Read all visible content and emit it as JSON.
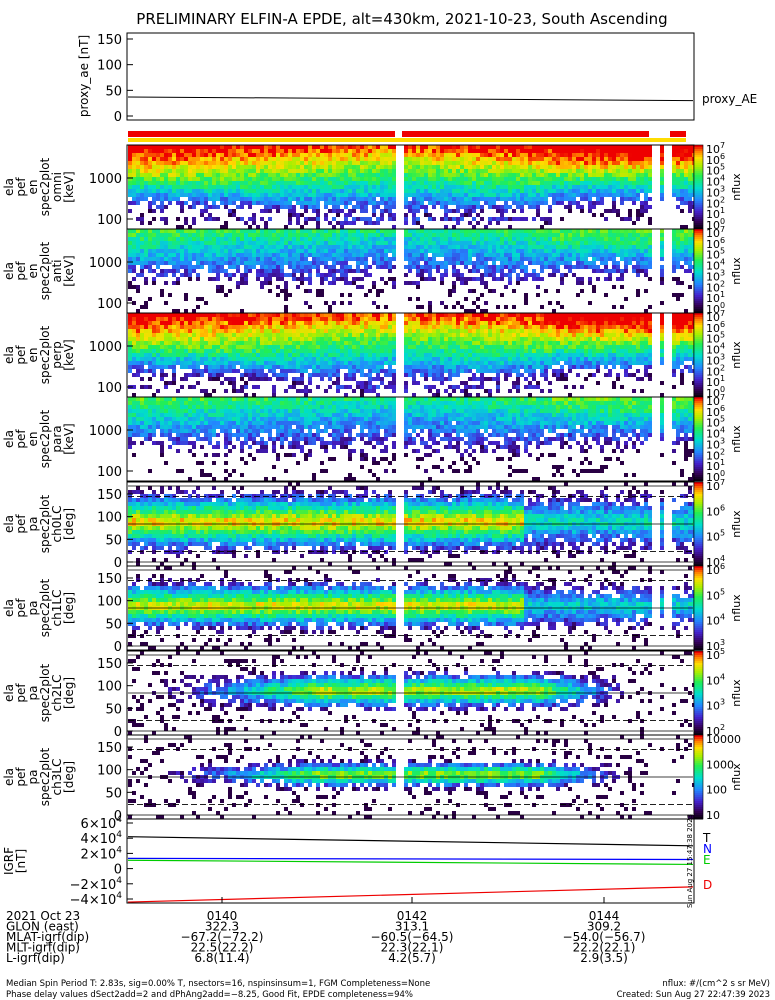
{
  "title": "PRELIMINARY ELFIN-A EPDE, alt=430km, 2021-10-23, South Ascending",
  "colors": {
    "bar_red": "#ee0000",
    "bar_yellow": "#ffdd00",
    "trace_T": "#000000",
    "trace_N": "#0000ff",
    "trace_E": "#00cc00",
    "trace_D": "#ee0000"
  },
  "chart_data": [
    {
      "type": "line",
      "panel": "proxy_ae",
      "ylabel": "proxy_ae [nT]",
      "yticks": [
        "150",
        "100",
        "50",
        "0"
      ],
      "ylim": [
        0,
        150
      ],
      "series": [
        {
          "name": "proxy_AE",
          "x": [
            0,
            1
          ],
          "values": [
            37,
            30
          ]
        }
      ]
    },
    {
      "type": "heatmap",
      "panel": "ela_pef_en_spec2plot_omni",
      "ylabel": "ela pef en spec2plot omni [keV]",
      "yticks": [
        "1000",
        "100"
      ],
      "colorbar_label": "nflux",
      "colorbar_ticks": [
        "10",
        "10",
        "10",
        "10",
        "10",
        "10",
        "10",
        "10"
      ],
      "colorbar_exponents": [
        "7",
        "6",
        "5",
        "4",
        "3",
        "2",
        "1",
        "0"
      ]
    },
    {
      "type": "heatmap",
      "panel": "ela_pef_en_spec2plot_anti",
      "ylabel": "ela pef en spec2plot anti [keV]",
      "yticks": [
        "1000",
        "100"
      ],
      "colorbar_label": "nflux",
      "colorbar_ticks": [
        "10",
        "10",
        "10",
        "10",
        "10",
        "10",
        "10",
        "10"
      ],
      "colorbar_exponents": [
        "7",
        "6",
        "5",
        "4",
        "3",
        "2",
        "1",
        "0"
      ]
    },
    {
      "type": "heatmap",
      "panel": "ela_pef_en_spec2plot_perp",
      "ylabel": "ela pef en spec2plot perp [keV]",
      "yticks": [
        "1000",
        "100"
      ],
      "colorbar_label": "nflux",
      "colorbar_ticks": [
        "10",
        "10",
        "10",
        "10",
        "10",
        "10",
        "10",
        "10"
      ],
      "colorbar_exponents": [
        "7",
        "6",
        "5",
        "4",
        "3",
        "2",
        "1",
        "0"
      ]
    },
    {
      "type": "heatmap",
      "panel": "ela_pef_en_spec2plot_para",
      "ylabel": "ela pef en spec2plot para [keV]",
      "yticks": [
        "1000",
        "100"
      ],
      "colorbar_label": "nflux",
      "colorbar_ticks": [
        "10",
        "10",
        "10",
        "10",
        "10",
        "10",
        "10",
        "10"
      ],
      "colorbar_exponents": [
        "7",
        "6",
        "5",
        "4",
        "3",
        "2",
        "1",
        "0"
      ]
    },
    {
      "type": "heatmap",
      "panel": "ela_pef_pa_spec2plot_ch0LC",
      "ylabel": "ela pef pa spec2plot ch0LC [deg]",
      "yticks": [
        "150",
        "100",
        "50",
        "0"
      ],
      "ylim": [
        0,
        180
      ],
      "colorbar_label": "nflux",
      "colorbar_ticks": [
        "10",
        "10",
        "10",
        "10"
      ],
      "colorbar_exponents": [
        "7",
        "6",
        "5",
        "4"
      ]
    },
    {
      "type": "heatmap",
      "panel": "ela_pef_pa_spec2plot_ch1LC",
      "ylabel": "ela pef pa spec2plot ch1LC [deg]",
      "yticks": [
        "150",
        "100",
        "50",
        "0"
      ],
      "ylim": [
        0,
        180
      ],
      "colorbar_label": "nflux",
      "colorbar_ticks": [
        "10",
        "10",
        "10",
        "10"
      ],
      "colorbar_exponents": [
        "6",
        "5",
        "4",
        "3"
      ]
    },
    {
      "type": "heatmap",
      "panel": "ela_pef_pa_spec2plot_ch2LC",
      "ylabel": "ela pef pa spec2plot ch2LC [deg]",
      "yticks": [
        "150",
        "100",
        "50",
        "0"
      ],
      "ylim": [
        0,
        180
      ],
      "colorbar_label": "nflux",
      "colorbar_ticks": [
        "10",
        "10",
        "10",
        "10"
      ],
      "colorbar_exponents": [
        "5",
        "4",
        "3",
        "2"
      ]
    },
    {
      "type": "heatmap",
      "panel": "ela_pef_pa_spec2plot_ch3LC",
      "ylabel": "ela pef pa spec2plot ch3LC [deg]",
      "yticks": [
        "150",
        "100",
        "50",
        "0"
      ],
      "ylim": [
        0,
        180
      ],
      "colorbar_label": "nflux",
      "colorbar_ticks": [
        "10000",
        "1000",
        "100",
        "10"
      ],
      "colorbar_exponents": [
        "",
        "",
        "",
        ""
      ]
    },
    {
      "type": "line",
      "panel": "IGRF",
      "ylabel": "IGRF [nT]",
      "yticks": [
        "6×10",
        "4×10",
        "2×10",
        "0",
        "−2×10",
        "−4×10"
      ],
      "ytick_exponents": [
        "4",
        "4",
        "4",
        "",
        "4",
        "4"
      ],
      "ylim": [
        -40000,
        60000
      ],
      "side_label": "Sun Aug 27 15:47:38 2023",
      "series": [
        {
          "name": "T",
          "x": [
            0,
            1
          ],
          "values": [
            42000,
            30000
          ]
        },
        {
          "name": "N",
          "x": [
            0,
            1
          ],
          "values": [
            13500,
            12000
          ]
        },
        {
          "name": "E",
          "x": [
            0,
            1
          ],
          "values": [
            11000,
            5500
          ]
        },
        {
          "name": "D",
          "x": [
            0,
            1
          ],
          "values": [
            -44000,
            -24000
          ]
        }
      ]
    }
  ],
  "axis": {
    "header": [
      "2021 Oct 23",
      "GLON (east)",
      "MLAT-igrf(dip)",
      "MLT-igrf(dip)",
      "L-igrf(dip)"
    ],
    "columns": [
      {
        "time": "0140",
        "values": [
          "322.3",
          "−67.2(−72.2)",
          "22.5(22.2)",
          "6.8(11.4)"
        ]
      },
      {
        "time": "0142",
        "values": [
          "313.1",
          "−60.5(−64.5)",
          "22.3(22.1)",
          "4.2(5.7)"
        ]
      },
      {
        "time": "0144",
        "values": [
          "309.2",
          "−54.0(−56.7)",
          "22.2(22.1)",
          "2.9(3.5)"
        ]
      }
    ]
  },
  "footer": {
    "line1": "Median Spin Period T: 2.83s, sig=0.00% T, nsectors=16, nspinsinsum=1, FGM Completeness=None",
    "line2": "Phase delay values dSect2add=2 and dPhAng2add=−8.25, Good Fit, EPDE completeness=94%",
    "units": "nflux: #/(cm^2 s sr MeV)",
    "created": "Created: Sun Aug 27 22:47:39 2023"
  }
}
